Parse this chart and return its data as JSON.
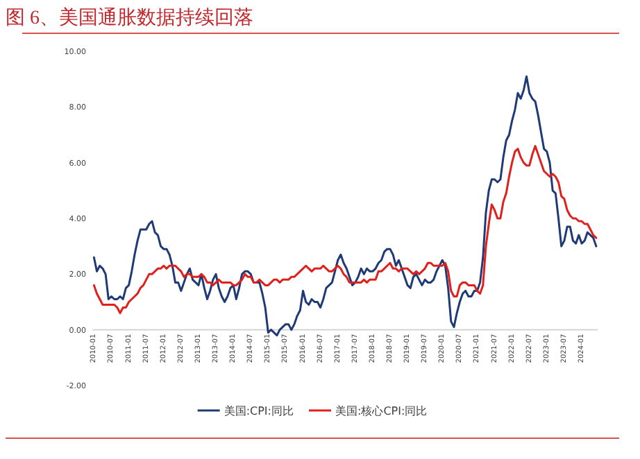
{
  "chart_data": {
    "type": "line",
    "title": "图 6、美国通胀数据持续回落",
    "categories": [
      "2010-01",
      null,
      null,
      null,
      null,
      null,
      "2010-07",
      null,
      null,
      null,
      null,
      null,
      "2011-01",
      null,
      null,
      null,
      null,
      null,
      "2011-07",
      null,
      null,
      null,
      null,
      null,
      "2012-01",
      null,
      null,
      null,
      null,
      null,
      "2012-07",
      null,
      null,
      null,
      null,
      null,
      "2013-01",
      null,
      null,
      null,
      null,
      null,
      "2013-07",
      null,
      null,
      null,
      null,
      null,
      "2014-01",
      null,
      null,
      null,
      null,
      null,
      "2014-07",
      null,
      null,
      null,
      null,
      null,
      "2015-01",
      null,
      null,
      null,
      null,
      null,
      "2015-07",
      null,
      null,
      null,
      null,
      null,
      "2016-01",
      null,
      null,
      null,
      null,
      null,
      "2016-07",
      null,
      null,
      null,
      null,
      null,
      "2017-01",
      null,
      null,
      null,
      null,
      null,
      "2017-07",
      null,
      null,
      null,
      null,
      null,
      "2018-01",
      null,
      null,
      null,
      null,
      null,
      "2018-07",
      null,
      null,
      null,
      null,
      null,
      "2019-01",
      null,
      null,
      null,
      null,
      null,
      "2019-07",
      null,
      null,
      null,
      null,
      null,
      "2020-01",
      null,
      null,
      null,
      null,
      null,
      "2020-07",
      null,
      null,
      null,
      null,
      null,
      "2021-01",
      null,
      null,
      null,
      null,
      null,
      "2021-07",
      null,
      null,
      null,
      null,
      null,
      "2022-01",
      null,
      null,
      null,
      null,
      null,
      "2022-07",
      null,
      null,
      null,
      null,
      null,
      "2023-01",
      null,
      null,
      null,
      null,
      null,
      "2023-07",
      null,
      null,
      null,
      null,
      null,
      "2024-01",
      null,
      null,
      null,
      null,
      null
    ],
    "series": [
      {
        "name": "美国:CPI:同比",
        "color": "#1f3a75",
        "values": [
          2.6,
          2.1,
          2.3,
          2.2,
          2.0,
          1.1,
          1.2,
          1.1,
          1.1,
          1.2,
          1.1,
          1.5,
          1.6,
          2.1,
          2.7,
          3.2,
          3.6,
          3.6,
          3.6,
          3.8,
          3.9,
          3.5,
          3.4,
          3.0,
          2.9,
          2.9,
          2.7,
          2.3,
          1.7,
          1.7,
          1.4,
          1.7,
          2.0,
          2.2,
          1.8,
          1.7,
          1.6,
          2.0,
          1.5,
          1.1,
          1.4,
          1.8,
          2.0,
          1.5,
          1.2,
          1.0,
          1.2,
          1.5,
          1.6,
          1.1,
          1.5,
          2.0,
          2.1,
          2.1,
          2.0,
          1.7,
          1.7,
          1.7,
          1.3,
          0.8,
          -0.1,
          0.0,
          -0.1,
          -0.2,
          0.0,
          0.1,
          0.2,
          0.2,
          0.0,
          0.2,
          0.5,
          0.7,
          1.4,
          1.0,
          0.9,
          1.1,
          1.0,
          1.0,
          0.8,
          1.1,
          1.5,
          1.6,
          1.7,
          2.1,
          2.5,
          2.7,
          2.4,
          2.2,
          1.9,
          1.6,
          1.7,
          1.9,
          2.2,
          2.0,
          2.2,
          2.1,
          2.1,
          2.2,
          2.4,
          2.5,
          2.8,
          2.9,
          2.9,
          2.7,
          2.3,
          2.5,
          2.2,
          1.9,
          1.6,
          1.5,
          1.9,
          2.0,
          1.8,
          1.6,
          1.8,
          1.7,
          1.7,
          1.8,
          2.1,
          2.3,
          2.5,
          2.3,
          1.5,
          0.3,
          0.1,
          0.6,
          1.0,
          1.3,
          1.4,
          1.2,
          1.2,
          1.4,
          1.4,
          1.7,
          2.6,
          4.2,
          5.0,
          5.4,
          5.4,
          5.3,
          5.4,
          6.2,
          6.8,
          7.0,
          7.5,
          7.9,
          8.5,
          8.3,
          8.6,
          9.1,
          8.5,
          8.3,
          8.2,
          7.7,
          7.1,
          6.5,
          6.4,
          6.0,
          5.0,
          4.9,
          4.0,
          3.0,
          3.2,
          3.7,
          3.7,
          3.2,
          3.1,
          3.4,
          3.1,
          3.2,
          3.5,
          3.4,
          3.3,
          3.0
        ]
      },
      {
        "name": "美国:核心CPI:同比",
        "color": "#e0201c",
        "values": [
          1.6,
          1.3,
          1.1,
          0.9,
          0.9,
          0.9,
          0.9,
          0.9,
          0.8,
          0.6,
          0.8,
          0.8,
          1.0,
          1.1,
          1.2,
          1.3,
          1.5,
          1.6,
          1.8,
          2.0,
          2.0,
          2.1,
          2.2,
          2.2,
          2.3,
          2.2,
          2.3,
          2.3,
          2.3,
          2.2,
          2.1,
          1.9,
          2.0,
          2.0,
          1.9,
          1.9,
          1.9,
          2.0,
          1.9,
          1.7,
          1.7,
          1.6,
          1.7,
          1.8,
          1.7,
          1.7,
          1.7,
          1.7,
          1.6,
          1.6,
          1.7,
          1.8,
          2.0,
          1.9,
          1.9,
          1.7,
          1.7,
          1.8,
          1.7,
          1.6,
          1.6,
          1.7,
          1.8,
          1.8,
          1.7,
          1.8,
          1.8,
          1.8,
          1.9,
          1.9,
          2.0,
          2.1,
          2.2,
          2.3,
          2.2,
          2.1,
          2.2,
          2.2,
          2.2,
          2.3,
          2.2,
          2.1,
          2.1,
          2.2,
          2.3,
          2.2,
          2.0,
          1.9,
          1.7,
          1.7,
          1.7,
          1.7,
          1.7,
          1.8,
          1.7,
          1.8,
          1.8,
          1.8,
          2.1,
          2.1,
          2.2,
          2.3,
          2.4,
          2.2,
          2.2,
          2.1,
          2.2,
          2.2,
          2.2,
          2.1,
          2.0,
          2.1,
          2.0,
          2.1,
          2.2,
          2.4,
          2.4,
          2.3,
          2.3,
          2.3,
          2.3,
          2.4,
          2.1,
          1.4,
          1.2,
          1.2,
          1.6,
          1.7,
          1.7,
          1.6,
          1.6,
          1.6,
          1.4,
          1.3,
          1.6,
          3.0,
          3.8,
          4.5,
          4.3,
          4.0,
          4.0,
          4.6,
          4.9,
          5.5,
          6.0,
          6.4,
          6.5,
          6.2,
          6.0,
          5.9,
          5.9,
          6.3,
          6.6,
          6.3,
          6.0,
          5.7,
          5.6,
          5.5,
          5.6,
          5.5,
          5.3,
          4.8,
          4.7,
          4.3,
          4.1,
          4.0,
          4.0,
          3.9,
          3.9,
          3.8,
          3.8,
          3.6,
          3.4,
          3.3
        ]
      }
    ],
    "ylim": [
      -2,
      10
    ],
    "yticks": [
      {
        "value": -2,
        "label": "-2.00"
      },
      {
        "value": 0,
        "label": "0.00"
      },
      {
        "value": 2,
        "label": "2.00"
      },
      {
        "value": 4,
        "label": "4.00"
      },
      {
        "value": 6,
        "label": "6.00"
      },
      {
        "value": 8,
        "label": "8.00"
      },
      {
        "value": 10,
        "label": "10.00"
      }
    ],
    "grid": false,
    "legend": "bottom",
    "marker": "none",
    "line_style": "solid"
  }
}
